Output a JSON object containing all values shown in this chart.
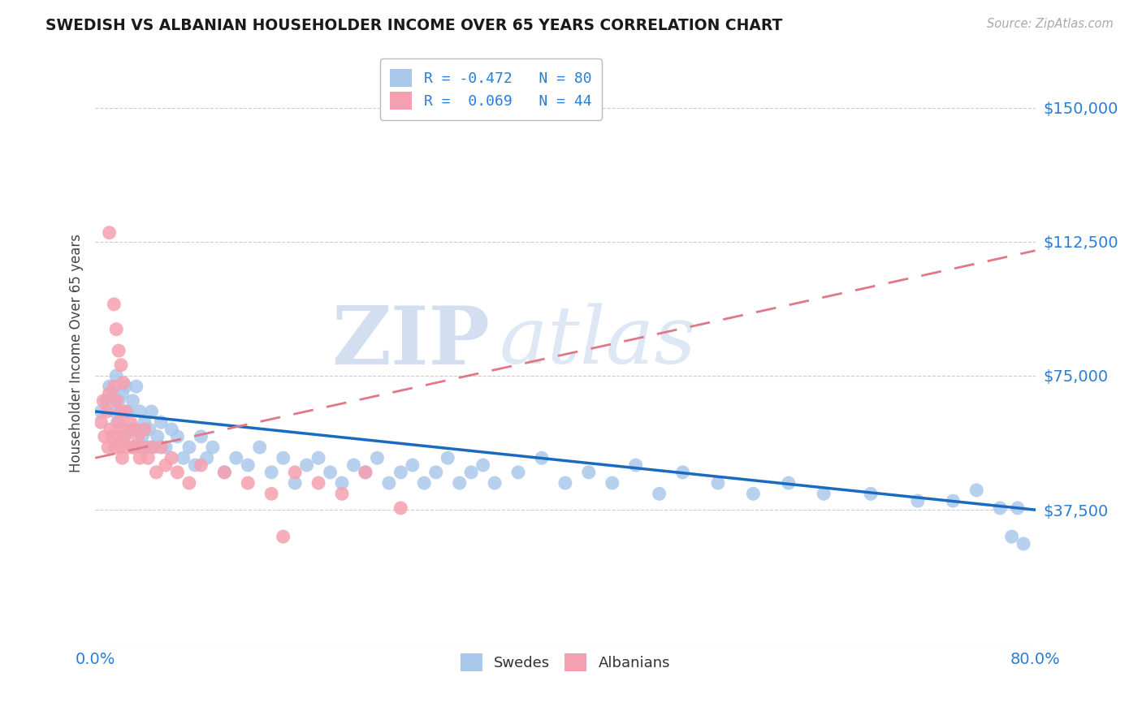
{
  "title": "SWEDISH VS ALBANIAN HOUSEHOLDER INCOME OVER 65 YEARS CORRELATION CHART",
  "source": "Source: ZipAtlas.com",
  "ylabel": "Householder Income Over 65 years",
  "xlim": [
    0.0,
    0.8
  ],
  "ylim": [
    0,
    162500
  ],
  "yticks": [
    0,
    37500,
    75000,
    112500,
    150000
  ],
  "ytick_labels": [
    "",
    "$37,500",
    "$75,000",
    "$112,500",
    "$150,000"
  ],
  "xtick_labels": [
    "0.0%",
    "80.0%"
  ],
  "swedes_color": "#aac8ea",
  "albanians_color": "#f5a0b0",
  "swede_line_color": "#1a6bbf",
  "albanian_line_color": "#e07888",
  "text_color_blue": "#2a7dd4",
  "text_color_dark": "#444444",
  "grid_color": "#cccccc",
  "watermark_zip": "ZIP",
  "watermark_atlas": "atlas",
  "legend_label_swedes": "R = -0.472   N = 80",
  "legend_label_albanians": "R =  0.069   N = 44",
  "swedes_x": [
    0.005,
    0.01,
    0.012,
    0.015,
    0.017,
    0.018,
    0.019,
    0.02,
    0.022,
    0.023,
    0.025,
    0.026,
    0.028,
    0.03,
    0.032,
    0.033,
    0.035,
    0.036,
    0.038,
    0.04,
    0.042,
    0.044,
    0.046,
    0.048,
    0.05,
    0.053,
    0.056,
    0.06,
    0.065,
    0.07,
    0.075,
    0.08,
    0.085,
    0.09,
    0.095,
    0.1,
    0.11,
    0.12,
    0.13,
    0.14,
    0.15,
    0.16,
    0.17,
    0.18,
    0.19,
    0.2,
    0.21,
    0.22,
    0.23,
    0.24,
    0.25,
    0.26,
    0.27,
    0.28,
    0.29,
    0.3,
    0.31,
    0.32,
    0.33,
    0.34,
    0.36,
    0.38,
    0.4,
    0.42,
    0.44,
    0.46,
    0.48,
    0.5,
    0.53,
    0.56,
    0.59,
    0.62,
    0.66,
    0.7,
    0.73,
    0.75,
    0.77,
    0.78,
    0.785,
    0.79
  ],
  "swedes_y": [
    65000,
    68000,
    72000,
    70000,
    65000,
    75000,
    62000,
    68000,
    65000,
    70000,
    58000,
    72000,
    65000,
    60000,
    68000,
    55000,
    72000,
    60000,
    65000,
    58000,
    62000,
    55000,
    60000,
    65000,
    55000,
    58000,
    62000,
    55000,
    60000,
    58000,
    52000,
    55000,
    50000,
    58000,
    52000,
    55000,
    48000,
    52000,
    50000,
    55000,
    48000,
    52000,
    45000,
    50000,
    52000,
    48000,
    45000,
    50000,
    48000,
    52000,
    45000,
    48000,
    50000,
    45000,
    48000,
    52000,
    45000,
    48000,
    50000,
    45000,
    48000,
    52000,
    45000,
    48000,
    45000,
    50000,
    42000,
    48000,
    45000,
    42000,
    45000,
    42000,
    42000,
    40000,
    40000,
    43000,
    38000,
    30000,
    38000,
    28000
  ],
  "albanians_x": [
    0.005,
    0.007,
    0.008,
    0.01,
    0.011,
    0.012,
    0.013,
    0.015,
    0.016,
    0.017,
    0.018,
    0.019,
    0.02,
    0.021,
    0.022,
    0.023,
    0.024,
    0.025,
    0.026,
    0.028,
    0.03,
    0.032,
    0.034,
    0.036,
    0.038,
    0.04,
    0.042,
    0.045,
    0.048,
    0.052,
    0.056,
    0.06,
    0.065,
    0.07,
    0.08,
    0.09,
    0.11,
    0.13,
    0.15,
    0.17,
    0.19,
    0.21,
    0.23,
    0.26
  ],
  "albanians_y": [
    62000,
    68000,
    58000,
    65000,
    55000,
    70000,
    60000,
    58000,
    72000,
    55000,
    68000,
    58000,
    62000,
    55000,
    65000,
    52000,
    60000,
    58000,
    65000,
    55000,
    62000,
    55000,
    60000,
    58000,
    52000,
    55000,
    60000,
    52000,
    55000,
    48000,
    55000,
    50000,
    52000,
    48000,
    45000,
    50000,
    48000,
    45000,
    42000,
    48000,
    45000,
    42000,
    48000,
    38000
  ],
  "albanian_outliers_x": [
    0.012,
    0.016,
    0.018,
    0.02,
    0.022,
    0.024,
    0.16
  ],
  "albanian_outliers_y": [
    115000,
    95000,
    88000,
    82000,
    78000,
    73000,
    30000
  ]
}
